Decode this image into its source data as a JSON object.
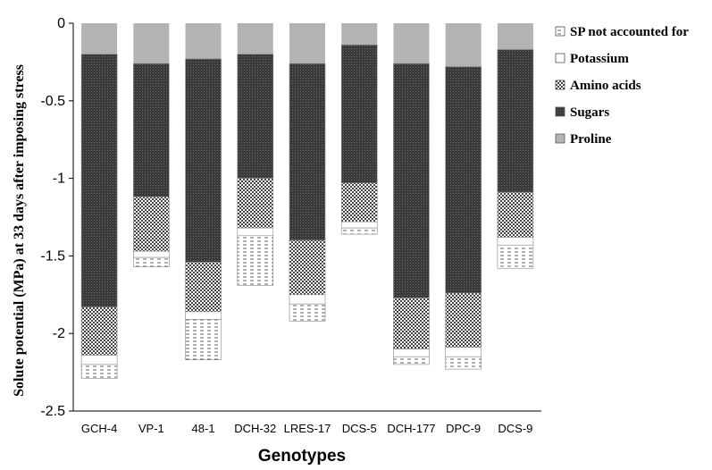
{
  "chart_data": {
    "type": "bar",
    "stacked": true,
    "xlabel": "Genotypes",
    "ylabel": "Solute potential (MPa) at 33 days after imposing stress",
    "ylim": [
      -2.5,
      0
    ],
    "yticks": [
      0,
      -0.5,
      -1,
      -1.5,
      -2,
      -2.5
    ],
    "ytick_labels": [
      "0",
      "-0.5",
      "-1",
      "-1.5",
      "-2",
      "-2.5"
    ],
    "categories": [
      "GCH-4",
      "VP-1",
      "48-1",
      "DCH-32",
      "LRES-17",
      "DCS-5",
      "DCH-177",
      "DPC-9",
      "DCS-9"
    ],
    "legend_position": "right",
    "series": [
      {
        "name": "Proline",
        "color": "#b3b3b3",
        "pattern": "solid-gray",
        "values": [
          -0.2,
          -0.26,
          -0.23,
          -0.2,
          -0.26,
          -0.14,
          -0.26,
          -0.28,
          -0.17
        ]
      },
      {
        "name": "Sugars",
        "color": "#3a3a3a",
        "pattern": "dark-dots",
        "values": [
          -1.63,
          -0.86,
          -1.31,
          -0.8,
          -1.14,
          -0.89,
          -1.51,
          -1.46,
          -0.92
        ]
      },
      {
        "name": "Amino acids",
        "color": "#ffffff",
        "pattern": "cross-dots",
        "values": [
          -0.31,
          -0.35,
          -0.32,
          -0.32,
          -0.35,
          -0.25,
          -0.33,
          -0.35,
          -0.29
        ]
      },
      {
        "name": "Potassium",
        "color": "#ffffff",
        "pattern": "plain-white",
        "values": [
          -0.06,
          -0.04,
          -0.05,
          -0.05,
          -0.06,
          -0.04,
          -0.05,
          -0.06,
          -0.05
        ]
      },
      {
        "name": "SP not accounted for",
        "color": "#ffffff",
        "pattern": "dashes",
        "values": [
          -0.09,
          -0.06,
          -0.26,
          -0.32,
          -0.11,
          -0.04,
          -0.05,
          -0.08,
          -0.15
        ]
      }
    ],
    "legend_order": [
      "SP not accounted for",
      "Potassium",
      "Amino acids",
      "Sugars",
      "Proline"
    ]
  }
}
